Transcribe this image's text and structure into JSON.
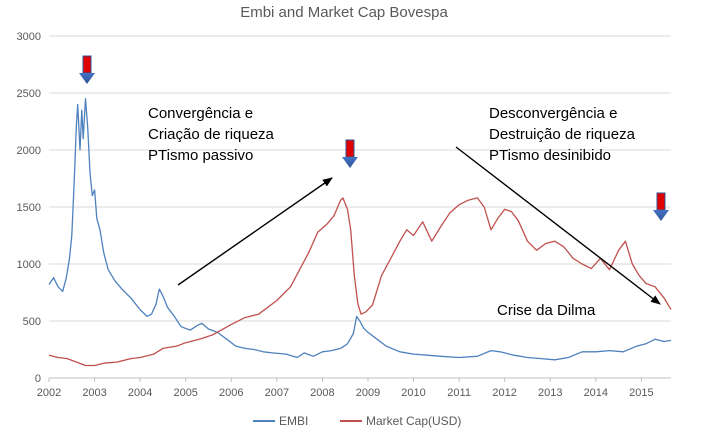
{
  "chart_data": {
    "type": "line",
    "title": "Embi and Market Cap Bovespa",
    "xlabel": "",
    "ylabel": "",
    "xlim": [
      2002,
      2015.65
    ],
    "ylim": [
      0,
      3000
    ],
    "x_ticks": [
      "2002",
      "2003",
      "2004",
      "2005",
      "2006",
      "2007",
      "2008",
      "2009",
      "2010",
      "2011",
      "2012",
      "2013",
      "2014",
      "2015"
    ],
    "y_ticks": [
      "0",
      "500",
      "1000",
      "1500",
      "2000",
      "2500",
      "3000"
    ],
    "grid": "horizontal",
    "legend_position": "bottom",
    "series": [
      {
        "name": "EMBI",
        "color": "#4F81BD",
        "points": [
          [
            2002.0,
            820
          ],
          [
            2002.1,
            880
          ],
          [
            2002.2,
            800
          ],
          [
            2002.3,
            760
          ],
          [
            2002.38,
            880
          ],
          [
            2002.45,
            1050
          ],
          [
            2002.5,
            1250
          ],
          [
            2002.55,
            1700
          ],
          [
            2002.6,
            2200
          ],
          [
            2002.63,
            2400
          ],
          [
            2002.68,
            2000
          ],
          [
            2002.72,
            2350
          ],
          [
            2002.75,
            2100
          ],
          [
            2002.8,
            2450
          ],
          [
            2002.85,
            2200
          ],
          [
            2002.9,
            1800
          ],
          [
            2002.95,
            1600
          ],
          [
            2003.0,
            1650
          ],
          [
            2003.05,
            1400
          ],
          [
            2003.12,
            1300
          ],
          [
            2003.2,
            1100
          ],
          [
            2003.3,
            950
          ],
          [
            2003.45,
            850
          ],
          [
            2003.6,
            780
          ],
          [
            2003.8,
            700
          ],
          [
            2004.0,
            600
          ],
          [
            2004.15,
            540
          ],
          [
            2004.25,
            560
          ],
          [
            2004.35,
            650
          ],
          [
            2004.42,
            780
          ],
          [
            2004.5,
            720
          ],
          [
            2004.6,
            620
          ],
          [
            2004.75,
            540
          ],
          [
            2004.9,
            450
          ],
          [
            2005.1,
            420
          ],
          [
            2005.25,
            460
          ],
          [
            2005.35,
            480
          ],
          [
            2005.5,
            430
          ],
          [
            2005.7,
            400
          ],
          [
            2005.9,
            340
          ],
          [
            2006.1,
            280
          ],
          [
            2006.3,
            260
          ],
          [
            2006.5,
            250
          ],
          [
            2006.7,
            230
          ],
          [
            2006.9,
            220
          ],
          [
            2007.2,
            210
          ],
          [
            2007.45,
            180
          ],
          [
            2007.6,
            220
          ],
          [
            2007.8,
            190
          ],
          [
            2008.0,
            230
          ],
          [
            2008.2,
            240
          ],
          [
            2008.4,
            260
          ],
          [
            2008.55,
            300
          ],
          [
            2008.68,
            390
          ],
          [
            2008.75,
            540
          ],
          [
            2008.82,
            500
          ],
          [
            2008.9,
            440
          ],
          [
            2009.0,
            400
          ],
          [
            2009.2,
            340
          ],
          [
            2009.4,
            280
          ],
          [
            2009.7,
            230
          ],
          [
            2010.0,
            210
          ],
          [
            2010.3,
            200
          ],
          [
            2010.6,
            190
          ],
          [
            2011.0,
            180
          ],
          [
            2011.4,
            190
          ],
          [
            2011.7,
            240
          ],
          [
            2011.9,
            230
          ],
          [
            2012.2,
            200
          ],
          [
            2012.5,
            180
          ],
          [
            2012.8,
            170
          ],
          [
            2013.1,
            160
          ],
          [
            2013.4,
            180
          ],
          [
            2013.7,
            230
          ],
          [
            2014.0,
            230
          ],
          [
            2014.3,
            240
          ],
          [
            2014.6,
            230
          ],
          [
            2014.9,
            280
          ],
          [
            2015.1,
            300
          ],
          [
            2015.3,
            340
          ],
          [
            2015.5,
            320
          ],
          [
            2015.65,
            330
          ]
        ]
      },
      {
        "name": "Market Cap(USD)",
        "color": "#C0504D",
        "points": [
          [
            2002.0,
            200
          ],
          [
            2002.2,
            180
          ],
          [
            2002.4,
            170
          ],
          [
            2002.6,
            140
          ],
          [
            2002.8,
            110
          ],
          [
            2003.0,
            110
          ],
          [
            2003.2,
            130
          ],
          [
            2003.5,
            140
          ],
          [
            2003.8,
            170
          ],
          [
            2004.0,
            180
          ],
          [
            2004.3,
            210
          ],
          [
            2004.5,
            260
          ],
          [
            2004.8,
            280
          ],
          [
            2005.0,
            310
          ],
          [
            2005.3,
            340
          ],
          [
            2005.6,
            380
          ],
          [
            2006.0,
            470
          ],
          [
            2006.3,
            530
          ],
          [
            2006.6,
            560
          ],
          [
            2007.0,
            680
          ],
          [
            2007.3,
            800
          ],
          [
            2007.5,
            950
          ],
          [
            2007.7,
            1100
          ],
          [
            2007.9,
            1280
          ],
          [
            2008.1,
            1350
          ],
          [
            2008.25,
            1420
          ],
          [
            2008.4,
            1560
          ],
          [
            2008.45,
            1580
          ],
          [
            2008.55,
            1480
          ],
          [
            2008.62,
            1300
          ],
          [
            2008.7,
            900
          ],
          [
            2008.78,
            650
          ],
          [
            2008.85,
            560
          ],
          [
            2008.95,
            580
          ],
          [
            2009.1,
            640
          ],
          [
            2009.3,
            900
          ],
          [
            2009.5,
            1050
          ],
          [
            2009.7,
            1200
          ],
          [
            2009.85,
            1300
          ],
          [
            2010.0,
            1250
          ],
          [
            2010.2,
            1370
          ],
          [
            2010.4,
            1200
          ],
          [
            2010.6,
            1330
          ],
          [
            2010.8,
            1450
          ],
          [
            2011.0,
            1520
          ],
          [
            2011.2,
            1560
          ],
          [
            2011.4,
            1580
          ],
          [
            2011.55,
            1500
          ],
          [
            2011.7,
            1300
          ],
          [
            2011.85,
            1400
          ],
          [
            2012.0,
            1480
          ],
          [
            2012.15,
            1460
          ],
          [
            2012.3,
            1380
          ],
          [
            2012.5,
            1200
          ],
          [
            2012.7,
            1120
          ],
          [
            2012.9,
            1180
          ],
          [
            2013.1,
            1200
          ],
          [
            2013.3,
            1150
          ],
          [
            2013.5,
            1050
          ],
          [
            2013.7,
            1000
          ],
          [
            2013.9,
            960
          ],
          [
            2014.1,
            1050
          ],
          [
            2014.3,
            950
          ],
          [
            2014.5,
            1120
          ],
          [
            2014.65,
            1200
          ],
          [
            2014.8,
            1000
          ],
          [
            2014.95,
            900
          ],
          [
            2015.1,
            830
          ],
          [
            2015.3,
            800
          ],
          [
            2015.5,
            700
          ],
          [
            2015.65,
            600
          ]
        ]
      }
    ],
    "annotations": [
      "Convergência e",
      "Criação de riqueza",
      "PTismo passivo",
      "Desconvergência e",
      "Destruição de riqueza",
      "PTismo desinibido",
      "Crise da Dilma"
    ]
  }
}
